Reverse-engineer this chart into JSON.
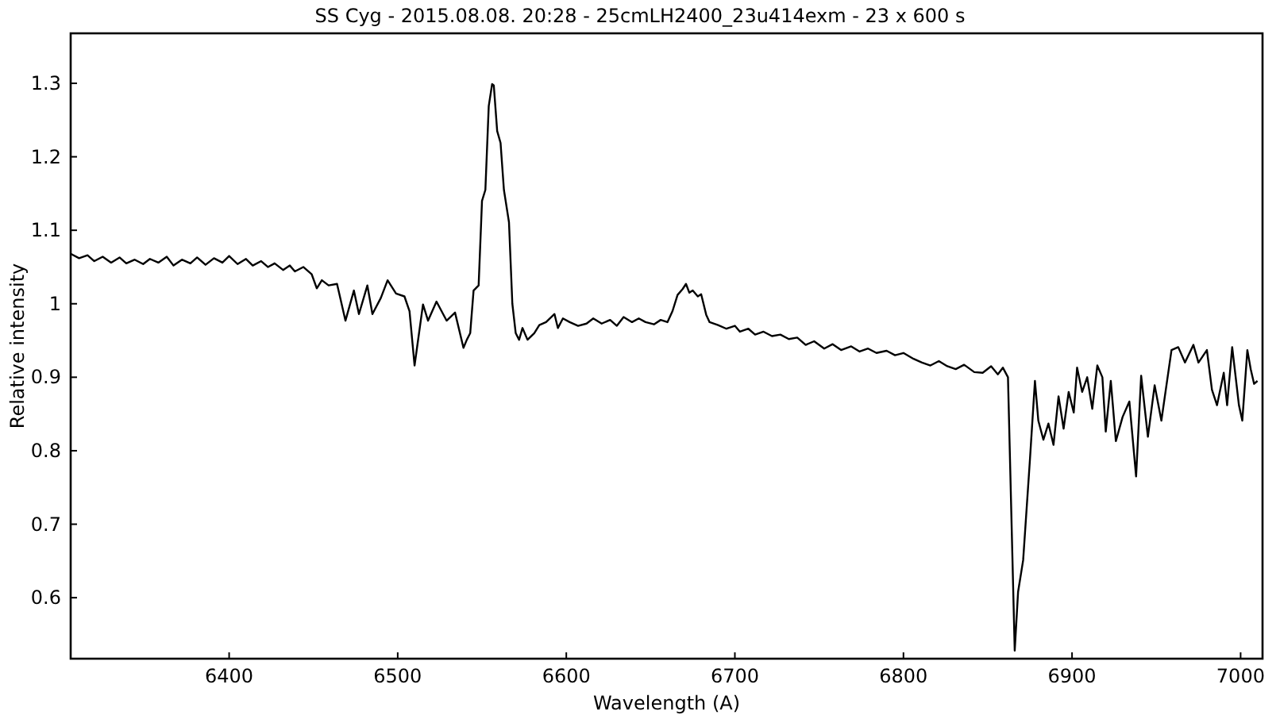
{
  "chart_data": {
    "type": "line",
    "title": "SS Cyg - 2015.08.08. 20:28 - 25cmLH2400_23u414exm - 23 x 600 s",
    "xlabel": "Wavelength (A)",
    "ylabel": "Relative intensity",
    "xlim": [
      6306,
      7013
    ],
    "ylim": [
      0.517,
      1.368
    ],
    "xticks": [
      6400,
      6500,
      6600,
      6700,
      6800,
      6900,
      7000
    ],
    "yticks": [
      0.6,
      0.7,
      0.8,
      0.9,
      1,
      1.1,
      1.2,
      1.3
    ],
    "grid": false,
    "marker": "none",
    "line_style": "solid",
    "series": [
      {
        "color": "#000000",
        "x": [
          6306,
          6311,
          6316,
          6320,
          6325,
          6330,
          6335,
          6339,
          6344,
          6349,
          6353,
          6358,
          6363,
          6367,
          6372,
          6377,
          6381,
          6386,
          6391,
          6396,
          6400,
          6405,
          6410,
          6414,
          6419,
          6423,
          6427,
          6432,
          6436,
          6439,
          6444,
          6449,
          6452,
          6455,
          6459,
          6464,
          6469,
          6474,
          6477,
          6482,
          6485,
          6490,
          6494,
          6499,
          6504,
          6507,
          6510,
          6515,
          6518,
          6523,
          6529,
          6534,
          6539,
          6541,
          6543,
          6545,
          6548,
          6550,
          6552,
          6554,
          6556,
          6557,
          6559,
          6561,
          6563,
          6566,
          6568,
          6570,
          6572,
          6574,
          6577,
          6581,
          6584,
          6588,
          6593,
          6595,
          6598,
          6602,
          6607,
          6612,
          6616,
          6621,
          6626,
          6630,
          6634,
          6639,
          6643,
          6647,
          6652,
          6656,
          6660,
          6663,
          6666,
          6669,
          6671,
          6673,
          6675,
          6678,
          6680,
          6683,
          6685,
          6690,
          6695,
          6700,
          6703,
          6708,
          6712,
          6717,
          6722,
          6727,
          6732,
          6737,
          6742,
          6747,
          6753,
          6758,
          6763,
          6769,
          6774,
          6779,
          6784,
          6790,
          6795,
          6800,
          6806,
          6811,
          6816,
          6821,
          6826,
          6831,
          6836,
          6842,
          6847,
          6852,
          6856,
          6859,
          6862,
          6866,
          6868,
          6871,
          6875,
          6878,
          6880,
          6883,
          6886,
          6889,
          6892,
          6895,
          6898,
          6901,
          6903,
          6906,
          6909,
          6912,
          6915,
          6918,
          6920,
          6923,
          6926,
          6930,
          6934,
          6938,
          6941,
          6945,
          6949,
          6953,
          6959,
          6963,
          6967,
          6972,
          6975,
          6980,
          6983,
          6986,
          6990,
          6992,
          6995,
          6999,
          7001,
          7004,
          7006,
          7008,
          7010
        ],
        "values": [
          1.068,
          1.062,
          1.066,
          1.058,
          1.064,
          1.056,
          1.063,
          1.055,
          1.06,
          1.054,
          1.061,
          1.056,
          1.064,
          1.052,
          1.06,
          1.055,
          1.063,
          1.053,
          1.062,
          1.056,
          1.065,
          1.054,
          1.061,
          1.052,
          1.058,
          1.05,
          1.055,
          1.046,
          1.052,
          1.044,
          1.05,
          1.04,
          1.021,
          1.032,
          1.025,
          1.027,
          0.977,
          1.018,
          0.986,
          1.025,
          0.986,
          1.008,
          1.032,
          1.014,
          1.01,
          0.99,
          0.916,
          0.999,
          0.977,
          1.003,
          0.977,
          0.988,
          0.94,
          0.951,
          0.96,
          1.018,
          1.025,
          1.14,
          1.155,
          1.269,
          1.299,
          1.297,
          1.235,
          1.219,
          1.155,
          1.111,
          1.0,
          0.96,
          0.951,
          0.967,
          0.951,
          0.96,
          0.971,
          0.975,
          0.986,
          0.967,
          0.98,
          0.975,
          0.97,
          0.973,
          0.98,
          0.973,
          0.978,
          0.97,
          0.982,
          0.975,
          0.98,
          0.975,
          0.972,
          0.978,
          0.975,
          0.99,
          1.012,
          1.02,
          1.027,
          1.015,
          1.018,
          1.01,
          1.013,
          0.985,
          0.975,
          0.971,
          0.966,
          0.97,
          0.962,
          0.966,
          0.958,
          0.962,
          0.956,
          0.958,
          0.952,
          0.954,
          0.944,
          0.949,
          0.939,
          0.945,
          0.937,
          0.942,
          0.935,
          0.939,
          0.933,
          0.936,
          0.93,
          0.933,
          0.925,
          0.92,
          0.916,
          0.922,
          0.915,
          0.911,
          0.917,
          0.907,
          0.906,
          0.915,
          0.904,
          0.913,
          0.9,
          0.528,
          0.608,
          0.651,
          0.787,
          0.895,
          0.841,
          0.815,
          0.837,
          0.808,
          0.874,
          0.83,
          0.88,
          0.852,
          0.913,
          0.88,
          0.9,
          0.857,
          0.916,
          0.9,
          0.826,
          0.895,
          0.813,
          0.846,
          0.867,
          0.765,
          0.902,
          0.819,
          0.889,
          0.841,
          0.937,
          0.941,
          0.92,
          0.944,
          0.92,
          0.937,
          0.883,
          0.862,
          0.906,
          0.862,
          0.941,
          0.862,
          0.841,
          0.937,
          0.911,
          0.891,
          0.895
        ]
      }
    ]
  }
}
